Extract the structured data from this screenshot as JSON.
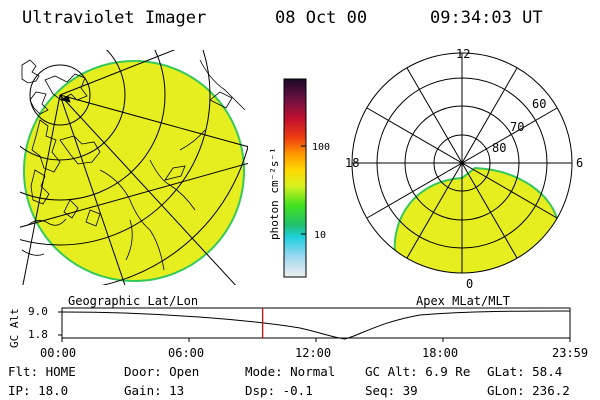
{
  "header": {
    "title": "Ultraviolet Imager",
    "date": "08 Oct 00",
    "time": "09:34:03 UT"
  },
  "geo_panel": {
    "caption": "Geographic Lat/Lon"
  },
  "colorbar": {
    "units": "photon cm⁻²s⁻¹",
    "ticks": [
      "100",
      "10"
    ]
  },
  "polar_panel": {
    "caption": "Apex MLat/MLT",
    "mlt_labels": {
      "top": "12",
      "left": "18",
      "right": "6",
      "bottom": "0"
    },
    "lat_labels": [
      "60",
      "70",
      "80"
    ]
  },
  "altitude_strip": {
    "ylabel": "GC Alt",
    "y_ticks": [
      "9.0",
      "1.8"
    ],
    "x_ticks": [
      "00:00",
      "06:00",
      "12:00",
      "18:00",
      "23:59"
    ],
    "current_time_fraction": 0.395
  },
  "footer": {
    "row1": [
      "Flt: HOME",
      "Door: Open",
      "Mode: Normal",
      "GC Alt: 6.9 Re",
      "GLat:  58.4"
    ],
    "row2": [
      "IP: 18.0",
      "Gain: 13",
      "Dsp:   -0.1",
      "Seq: 39",
      "GLon: 236.2"
    ]
  },
  "colors": {
    "emission": "#e6ee1f",
    "emission_edge": "#35c95a",
    "time_marker": "#d40000"
  }
}
